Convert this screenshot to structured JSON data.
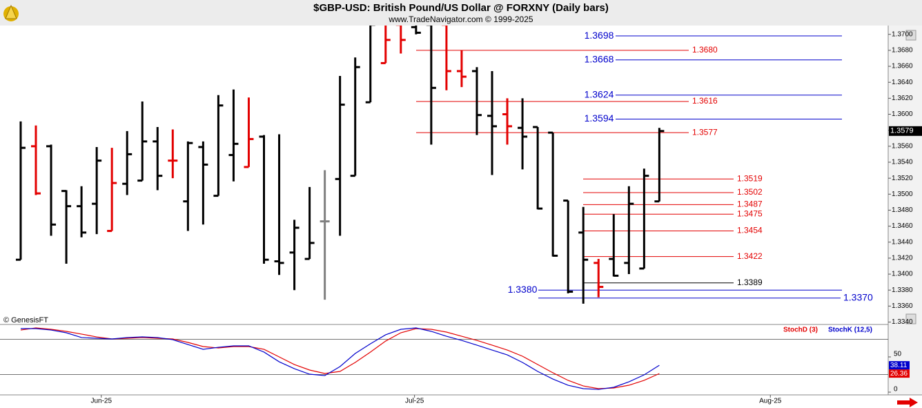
{
  "chart_data": [
    {
      "type": "ohlc",
      "title": "$GBP-USD:  British Pound/US Dollar @ FORXNY  (Daily bars)",
      "subtitle": "www.TradeNavigator.com © 1999-2025",
      "watermark": "© GenesisFT",
      "x": [
        0,
        1,
        2,
        3,
        4,
        5,
        6,
        7,
        8,
        9,
        10,
        11,
        12,
        13,
        14,
        15,
        16,
        17,
        18,
        19,
        20,
        21,
        22,
        23,
        24,
        25,
        26,
        27,
        28,
        29,
        30,
        31,
        32,
        33,
        34,
        35,
        36,
        37,
        38,
        39,
        40,
        41,
        42
      ],
      "open": [
        1.3418,
        1.356,
        1.356,
        1.3504,
        1.3485,
        1.3488,
        1.3454,
        1.3513,
        1.3517,
        1.3566,
        1.3542,
        1.3491,
        1.3559,
        1.3498,
        1.3549,
        1.3534,
        1.3572,
        1.3416,
        1.3427,
        1.3419,
        1.3466,
        1.3519,
        1.3523,
        1.3615,
        1.3664,
        1.3712,
        1.3709,
        1.3712,
        1.3712,
        1.3654,
        1.3654,
        1.3598,
        1.36,
        1.3583,
        1.3584,
        1.3577,
        1.3492,
        1.3452,
        1.3414,
        1.3419,
        1.3414,
        1.3407,
        1.3491
      ],
      "high": [
        1.3591,
        1.3586,
        1.3562,
        1.3505,
        1.351,
        1.3559,
        1.3558,
        1.3579,
        1.3616,
        1.3584,
        1.3581,
        1.3566,
        1.3566,
        1.3624,
        1.3631,
        1.3621,
        1.3574,
        1.3575,
        1.3468,
        1.3509,
        1.353,
        1.3648,
        1.3671,
        1.3712,
        1.3712,
        1.3712,
        1.3717,
        1.3712,
        1.3712,
        1.368,
        1.3659,
        1.3654,
        1.362,
        1.362,
        1.3584,
        1.3577,
        1.3492,
        1.3484,
        1.3419,
        1.3475,
        1.351,
        1.3532,
        1.3583
      ],
      "low": [
        1.3418,
        1.3499,
        1.3448,
        1.3413,
        1.3446,
        1.345,
        1.3454,
        1.3499,
        1.3517,
        1.3505,
        1.352,
        1.3454,
        1.3462,
        1.3498,
        1.3516,
        1.3534,
        1.3413,
        1.3399,
        1.338,
        1.3419,
        1.3368,
        1.3448,
        1.3523,
        1.3615,
        1.3664,
        1.3676,
        1.37,
        1.3562,
        1.363,
        1.3634,
        1.3574,
        1.3524,
        1.3562,
        1.3531,
        1.3481,
        1.3422,
        1.3376,
        1.3363,
        1.3371,
        1.3397,
        1.34,
        1.3407,
        1.3491
      ],
      "close": [
        1.3558,
        1.3501,
        1.3462,
        1.3485,
        1.3452,
        1.3542,
        1.3514,
        1.355,
        1.3566,
        1.3523,
        1.3542,
        1.3564,
        1.3537,
        1.3611,
        1.3563,
        1.3569,
        1.3418,
        1.3414,
        1.3458,
        1.3439,
        1.3466,
        1.3612,
        1.3659,
        1.3712,
        1.3693,
        1.3693,
        1.3702,
        1.3633,
        1.3654,
        1.3647,
        1.3599,
        1.3585,
        1.3585,
        1.3572,
        1.3482,
        1.3423,
        1.3378,
        1.3418,
        1.3384,
        1.3398,
        1.3488,
        1.3523,
        1.3579
      ],
      "colors": [
        "#000000",
        "#e30000",
        "#000000",
        "#000000",
        "#000000",
        "#000000",
        "#e30000",
        "#000000",
        "#000000",
        "#000000",
        "#e30000",
        "#000000",
        "#000000",
        "#000000",
        "#000000",
        "#e30000",
        "#000000",
        "#000000",
        "#000000",
        "#000000",
        "#808080",
        "#000000",
        "#000000",
        "#000000",
        "#e30000",
        "#e30000",
        "#000000",
        "#000000",
        "#e30000",
        "#e30000",
        "#000000",
        "#000000",
        "#e30000",
        "#000000",
        "#000000",
        "#000000",
        "#000000",
        "#000000",
        "#e30000",
        "#000000",
        "#000000",
        "#000000",
        "#000000"
      ],
      "xlim": [
        -1.36,
        57.05
      ],
      "xticks": [
        {
          "value": 5.3,
          "label": "Jun-25"
        },
        {
          "value": 25.9,
          "label": "Jul-25"
        },
        {
          "value": 49.3,
          "label": "Aug-25"
        }
      ],
      "ylim": [
        1.3337,
        1.3711
      ],
      "yticks": [
        {
          "value": 1.334,
          "label": "1.3340"
        },
        {
          "value": 1.336,
          "label": "1.3360"
        },
        {
          "value": 1.338,
          "label": "1.3380"
        },
        {
          "value": 1.34,
          "label": "1.3400"
        },
        {
          "value": 1.342,
          "label": "1.3420"
        },
        {
          "value": 1.344,
          "label": "1.3440"
        },
        {
          "value": 1.346,
          "label": "1.3460"
        },
        {
          "value": 1.348,
          "label": "1.3480"
        },
        {
          "value": 1.35,
          "label": "1.3500"
        },
        {
          "value": 1.352,
          "label": "1.3520"
        },
        {
          "value": 1.354,
          "label": "1.3540"
        },
        {
          "value": 1.356,
          "label": "1.3560"
        },
        {
          "value": 1.358,
          "label": "1.3580"
        },
        {
          "value": 1.36,
          "label": "1.3600"
        },
        {
          "value": 1.362,
          "label": "1.3620"
        },
        {
          "value": 1.364,
          "label": "1.3640"
        },
        {
          "value": 1.366,
          "label": "1.3660"
        },
        {
          "value": 1.368,
          "label": "1.3680"
        },
        {
          "value": 1.37,
          "label": "1.3700"
        }
      ],
      "last_value": {
        "value": 1.3579,
        "label": "1.3579"
      },
      "levels": [
        {
          "value": 1.3698,
          "label": "1.3698",
          "color": "#0000cc"
        },
        {
          "value": 1.368,
          "label": "1.3680",
          "color": "#e30000"
        },
        {
          "value": 1.3668,
          "label": "1.3668",
          "color": "#0000cc"
        },
        {
          "value": 1.3624,
          "label": "1.3624",
          "color": "#0000cc"
        },
        {
          "value": 1.3616,
          "label": "1.3616",
          "color": "#e30000"
        },
        {
          "value": 1.3594,
          "label": "1.3594",
          "color": "#0000cc"
        },
        {
          "value": 1.3577,
          "label": "1.3577",
          "color": "#e30000"
        },
        {
          "value": 1.3519,
          "label": "1.3519",
          "color": "#e30000"
        },
        {
          "value": 1.3502,
          "label": "1.3502",
          "color": "#e30000"
        },
        {
          "value": 1.3487,
          "label": "1.3487",
          "color": "#e30000"
        },
        {
          "value": 1.3475,
          "label": "1.3475",
          "color": "#e30000"
        },
        {
          "value": 1.3454,
          "label": "1.3454",
          "color": "#e30000"
        },
        {
          "value": 1.3422,
          "label": "1.3422",
          "color": "#e30000"
        },
        {
          "value": 1.3389,
          "label": "1.3389",
          "color": "#000000"
        },
        {
          "value": 1.338,
          "label": "1.3380",
          "color": "#0000cc"
        },
        {
          "value": 1.337,
          "label": "1.3370",
          "color": "#0000cc"
        }
      ]
    },
    {
      "type": "line",
      "x": [
        0,
        1,
        2,
        3,
        4,
        5,
        6,
        7,
        8,
        9,
        10,
        11,
        12,
        13,
        14,
        15,
        16,
        17,
        18,
        19,
        20,
        21,
        22,
        23,
        24,
        25,
        26,
        27,
        28,
        29,
        30,
        31,
        32,
        33,
        34,
        35,
        36,
        37,
        38,
        39,
        40,
        41,
        42
      ],
      "series": [
        {
          "name": "StochD (3)",
          "color": "#e30000",
          "values": [
            88.2,
            91.2,
            89.2,
            86.3,
            82.4,
            78.4,
            75.5,
            76.5,
            77.5,
            76.5,
            75.5,
            70.6,
            64.7,
            62.7,
            64.7,
            64.7,
            60.8,
            50,
            39.2,
            31.4,
            26.5,
            29.4,
            42.2,
            56.9,
            72.5,
            84.3,
            90.2,
            89.2,
            85.3,
            79.4,
            73.5,
            66.7,
            59.8,
            51,
            39.2,
            27.5,
            16.7,
            8.8,
            4.9,
            5.9,
            9.8,
            16.7,
            26.36
          ]
        },
        {
          "name": "StochK (12,5)",
          "color": "#0000cc",
          "values": [
            90.2,
            90.2,
            88.2,
            84.3,
            77.5,
            76.5,
            75.5,
            77.5,
            78.4,
            77.5,
            74.5,
            67.6,
            60.8,
            63.7,
            65.7,
            65.7,
            56.9,
            43.1,
            33.3,
            25.5,
            23.5,
            36.3,
            54.9,
            68.6,
            81.4,
            89.2,
            91.2,
            86.3,
            79.4,
            73.5,
            66.7,
            59.8,
            52.9,
            42.2,
            29.4,
            18.6,
            9.8,
            4.9,
            3.9,
            6.9,
            14.7,
            24.5,
            38.11
          ]
        }
      ],
      "xlim": [
        -1.36,
        57.05
      ],
      "ylim": [
        -3.9,
        95.1
      ],
      "yticks": [
        0,
        50
      ],
      "reference_lines": [
        25,
        75
      ]
    }
  ]
}
